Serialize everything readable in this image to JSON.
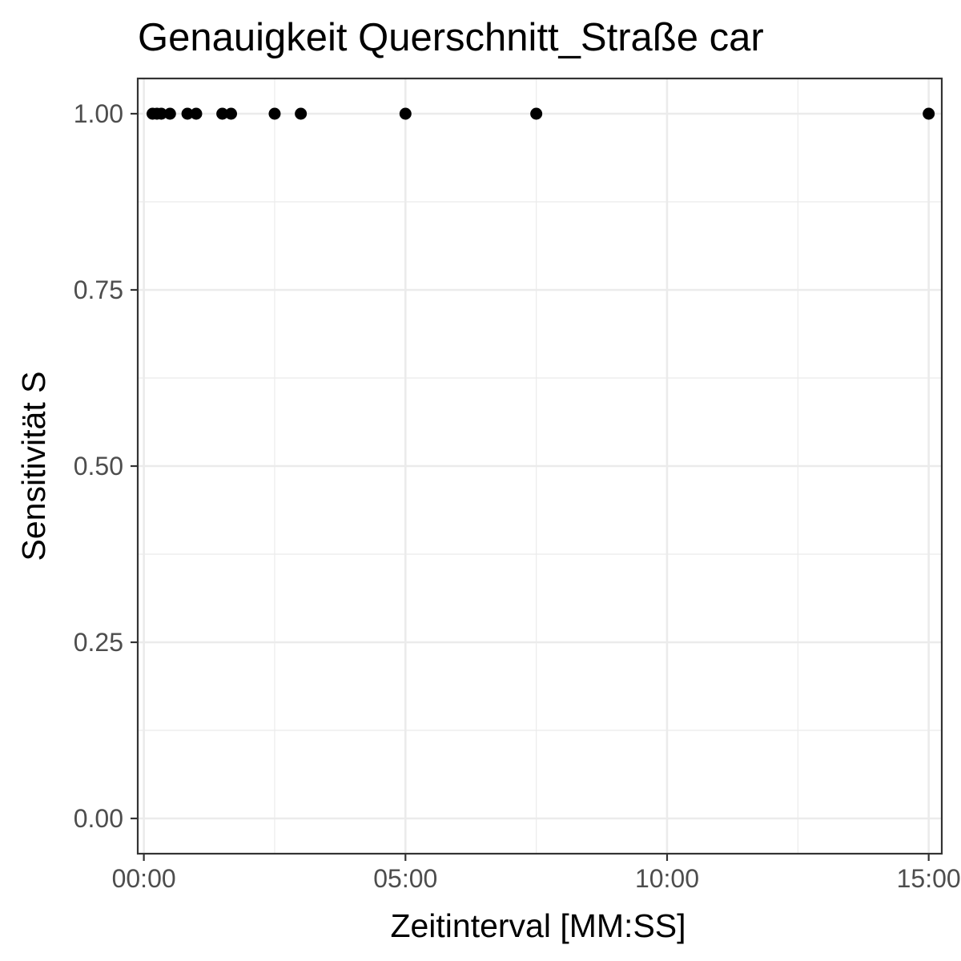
{
  "chart_data": {
    "type": "scatter",
    "title": "Genauigkeit Querschnitt_Straße car",
    "xlabel": "Zeitinterval [MM:SS]",
    "ylabel": "Sensitivität S",
    "x_unit": "MM:SS",
    "xlim": [
      "-00:07",
      "15:15"
    ],
    "ylim": [
      -0.05,
      1.05
    ],
    "x_ticks": [
      "00:00",
      "05:00",
      "10:00",
      "15:00"
    ],
    "x_minor_ticks": [
      "02:30",
      "07:30",
      "12:30"
    ],
    "y_ticks": [
      0.0,
      0.25,
      0.5,
      0.75,
      1.0
    ],
    "y_tick_labels": [
      "0.00",
      "0.25",
      "0.50",
      "0.75",
      "1.00"
    ],
    "y_minor_ticks": [
      0.125,
      0.375,
      0.625,
      0.875
    ],
    "grid": true,
    "legend": "none",
    "point_color": "#000000",
    "points": [
      {
        "x": "00:10",
        "y": 1.0
      },
      {
        "x": "00:15",
        "y": 1.0
      },
      {
        "x": "00:20",
        "y": 1.0
      },
      {
        "x": "00:30",
        "y": 1.0
      },
      {
        "x": "00:50",
        "y": 1.0
      },
      {
        "x": "01:00",
        "y": 1.0
      },
      {
        "x": "01:30",
        "y": 1.0
      },
      {
        "x": "01:40",
        "y": 1.0
      },
      {
        "x": "02:30",
        "y": 1.0
      },
      {
        "x": "03:00",
        "y": 1.0
      },
      {
        "x": "05:00",
        "y": 1.0
      },
      {
        "x": "07:30",
        "y": 1.0
      },
      {
        "x": "15:00",
        "y": 1.0
      }
    ]
  }
}
